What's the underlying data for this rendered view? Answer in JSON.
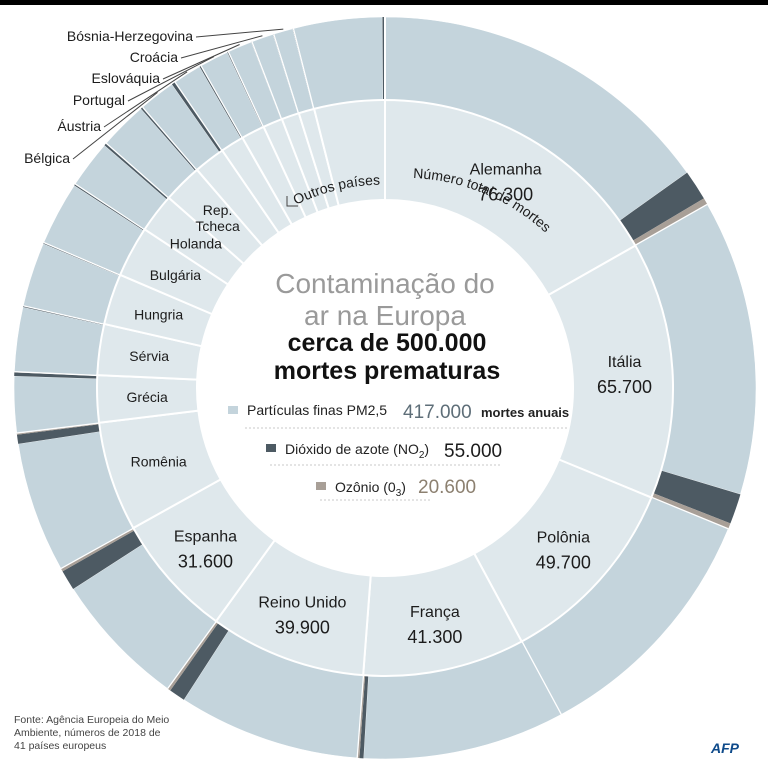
{
  "header": {
    "title_line1": "Contaminação do",
    "title_line2": "ar na Europa",
    "subtitle_line1": "cerca de 500.000",
    "subtitle_line2": "mortes prematuras"
  },
  "legend": {
    "pm_label": "Partículas finas PM2,5",
    "pm_value": "417.000",
    "pm_unit": "mortes anuais",
    "no2_label": "Dióxido de azote (NO",
    "no2_sub": "2",
    "no2_close": ")",
    "no2_value": "55.000",
    "o3_label": "Ozônio (0",
    "o3_sub": "3",
    "o3_close": ")",
    "o3_value": "20.600"
  },
  "ring_labels": {
    "total_deaths": "Número total de mortes",
    "other_countries": "Outros países"
  },
  "small_country_labels": [
    "Bósnia-Herzegovina",
    "Croácia",
    "Eslováquia",
    "Portugal",
    "Áustria",
    "Bélgica"
  ],
  "source": "Fonte: Agência Europeia do Meio Ambiente, números de 2018 de 41 países europeus",
  "logo": "AFP",
  "colors": {
    "pm": "#c4d4dc",
    "no2": "#4d5a63",
    "o3": "#a89f97",
    "inner": "#dfe8ec",
    "legend_value": "#5e6e78",
    "o3_value": "#8c8070"
  },
  "chart_data": {
    "type": "donut",
    "title": "Contaminação do ar na Europa",
    "total_deaths_approx": 500000,
    "pollutants": [
      {
        "name": "Partículas finas PM2,5",
        "value": 417000
      },
      {
        "name": "Dióxido de azote (NO2)",
        "value": 55000
      },
      {
        "name": "Ozônio (03)",
        "value": 20600
      }
    ],
    "countries": [
      {
        "name": "Alemanha",
        "total": 76300,
        "total_label": "76.300",
        "no2": 6000,
        "o3": 1400
      },
      {
        "name": "Itália",
        "total": 65700,
        "total_label": "65.700",
        "no2": 6000,
        "o3": 1200
      },
      {
        "name": "Polônia",
        "total": 49700,
        "total_label": "49.700",
        "no2": 0,
        "o3": 0
      },
      {
        "name": "França",
        "total": 41300,
        "total_label": "41.300",
        "no2": 800,
        "o3": 500
      },
      {
        "name": "Reino Unido",
        "total": 39900,
        "total_label": "39.900",
        "no2": 3200,
        "o3": 700
      },
      {
        "name": "Espanha",
        "total": 31600,
        "total_label": "31.600",
        "no2": 4000,
        "o3": 700
      },
      {
        "name": "Romênia",
        "total": 28000,
        "no2": 1800,
        "o3": 400
      },
      {
        "name": "Grécia",
        "total": 12000,
        "no2": 700,
        "o3": 200
      },
      {
        "name": "Sérvia",
        "total": 13000,
        "no2": 200,
        "o3": 100
      },
      {
        "name": "Hungria",
        "total": 13000,
        "no2": 200,
        "o3": 100
      },
      {
        "name": "Bulgária",
        "total": 13000,
        "no2": 300,
        "o3": 100
      },
      {
        "name": "Holanda",
        "total": 10000,
        "no2": 500,
        "o3": 100
      },
      {
        "name": "Rep. Tcheca",
        "total": 10000,
        "no2": 400,
        "o3": 100
      },
      {
        "name": "Bélgica",
        "total": 8000,
        "no2": 700,
        "o3": 100
      },
      {
        "name": "Áustria",
        "total": 6000,
        "no2": 300,
        "o3": 100
      },
      {
        "name": "Portugal",
        "total": 6000,
        "no2": 200,
        "o3": 100
      },
      {
        "name": "Eslováquia",
        "total": 5000,
        "no2": 100,
        "o3": 100
      },
      {
        "name": "Croácia",
        "total": 4500,
        "no2": 100,
        "o3": 100
      },
      {
        "name": "Bósnia-Herzegovina",
        "total": 4000,
        "no2": 100,
        "o3": 100
      },
      {
        "name": "Outros países",
        "total": 18000,
        "no2": 300,
        "o3": 200
      }
    ]
  }
}
